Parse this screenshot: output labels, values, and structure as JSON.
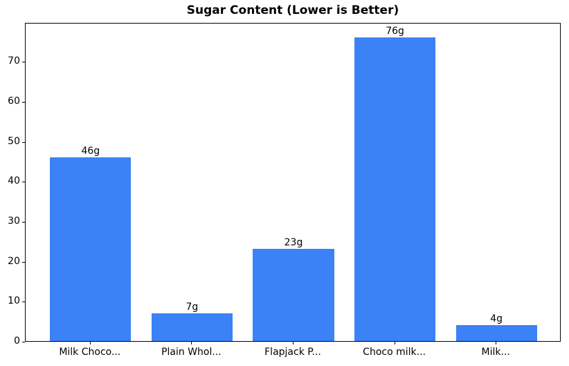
{
  "chart_data": {
    "type": "bar",
    "title": "Sugar Content (Lower is Better)",
    "categories": [
      "Milk Choco...",
      "Plain Whol...",
      "Flapjack P...",
      "Choco milk...",
      "Milk..."
    ],
    "values": [
      46,
      7,
      23,
      76,
      4
    ],
    "bar_labels": [
      "46g",
      "7g",
      "23g",
      "76g",
      "4g"
    ],
    "xlabel": "",
    "ylabel": "",
    "ylim": [
      0,
      79.8
    ],
    "yticks": [
      0,
      10,
      20,
      30,
      40,
      50,
      60,
      70
    ],
    "grid": false,
    "legend_position": "none",
    "bar_color": "#3b82f6",
    "axis_color": "#000000",
    "text_color": "#000000",
    "background_color": "#ffffff"
  }
}
